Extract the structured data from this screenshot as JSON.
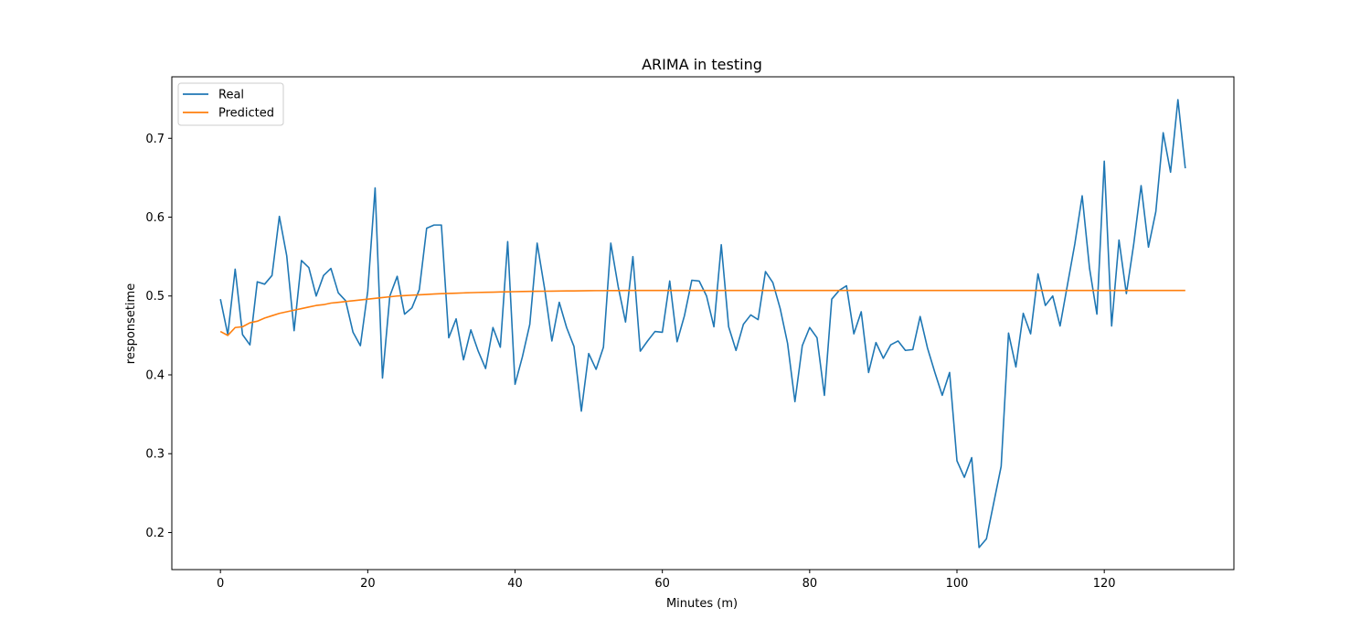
{
  "chart_data": {
    "type": "line",
    "title": "ARIMA in testing",
    "xlabel": "Minutes (m)",
    "ylabel": "responsetime",
    "xlim": [
      -6.6,
      137.6
    ],
    "ylim": [
      0.153,
      0.778
    ],
    "xticks": [
      0,
      20,
      40,
      60,
      80,
      100,
      120
    ],
    "yticks": [
      0.2,
      0.3,
      0.4,
      0.5,
      0.6,
      0.7
    ],
    "legend_position": "top-left",
    "grid": false,
    "series": [
      {
        "name": "Real",
        "color": "#1f77b4",
        "y": [
          0.496,
          0.451,
          0.534,
          0.451,
          0.438,
          0.518,
          0.515,
          0.526,
          0.601,
          0.551,
          0.456,
          0.545,
          0.536,
          0.5,
          0.526,
          0.535,
          0.504,
          0.494,
          0.454,
          0.437,
          0.506,
          0.637,
          0.396,
          0.5,
          0.525,
          0.477,
          0.485,
          0.508,
          0.586,
          0.59,
          0.59,
          0.447,
          0.471,
          0.419,
          0.457,
          0.43,
          0.408,
          0.46,
          0.435,
          0.569,
          0.388,
          0.423,
          0.464,
          0.567,
          0.51,
          0.443,
          0.492,
          0.46,
          0.436,
          0.354,
          0.427,
          0.407,
          0.435,
          0.567,
          0.512,
          0.467,
          0.55,
          0.43,
          0.443,
          0.455,
          0.454,
          0.519,
          0.442,
          0.475,
          0.52,
          0.519,
          0.5,
          0.461,
          0.565,
          0.461,
          0.431,
          0.464,
          0.476,
          0.47,
          0.531,
          0.517,
          0.484,
          0.44,
          0.366,
          0.437,
          0.46,
          0.447,
          0.374,
          0.496,
          0.507,
          0.513,
          0.452,
          0.48,
          0.403,
          0.441,
          0.421,
          0.438,
          0.443,
          0.431,
          0.432,
          0.474,
          0.434,
          0.403,
          0.374,
          0.403,
          0.291,
          0.27,
          0.295,
          0.181,
          0.192,
          0.238,
          0.284,
          0.453,
          0.41,
          0.478,
          0.452,
          0.528,
          0.488,
          0.5,
          0.462,
          0.514,
          0.566,
          0.627,
          0.535,
          0.477,
          0.671,
          0.462,
          0.571,
          0.503,
          0.566,
          0.64,
          0.562,
          0.607,
          0.707,
          0.657,
          0.749,
          0.662
        ]
      },
      {
        "name": "Predicted",
        "color": "#ff7f0e",
        "y": [
          0.455,
          0.45,
          0.46,
          0.461,
          0.466,
          0.468,
          0.472,
          0.475,
          0.478,
          0.48,
          0.482,
          0.484,
          0.486,
          0.488,
          0.489,
          0.491,
          0.492,
          0.493,
          0.494,
          0.495,
          0.496,
          0.497,
          0.498,
          0.499,
          0.5,
          0.5005,
          0.501,
          0.5015,
          0.502,
          0.5025,
          0.503,
          0.5033,
          0.5036,
          0.5039,
          0.5042,
          0.5045,
          0.5047,
          0.5049,
          0.5051,
          0.5053,
          0.5055,
          0.5057,
          0.5059,
          0.506,
          0.5061,
          0.5062,
          0.5063,
          0.5064,
          0.5065,
          0.5066,
          0.5067,
          0.5068,
          0.5068,
          0.5069,
          0.5069,
          0.507,
          0.507,
          0.507,
          0.507,
          0.507,
          0.507,
          0.507,
          0.507,
          0.507,
          0.507,
          0.507,
          0.507,
          0.507,
          0.507,
          0.507,
          0.507,
          0.507,
          0.507,
          0.507,
          0.507,
          0.507,
          0.507,
          0.507,
          0.507,
          0.507,
          0.507,
          0.507,
          0.507,
          0.507,
          0.507,
          0.507,
          0.507,
          0.507,
          0.507,
          0.507,
          0.507,
          0.507,
          0.507,
          0.507,
          0.507,
          0.507,
          0.507,
          0.507,
          0.507,
          0.507,
          0.507,
          0.507,
          0.507,
          0.507,
          0.507,
          0.507,
          0.507,
          0.507,
          0.507,
          0.507,
          0.507,
          0.507,
          0.507,
          0.507,
          0.507,
          0.507,
          0.507,
          0.507,
          0.507,
          0.507,
          0.507,
          0.507,
          0.507,
          0.507,
          0.507,
          0.507,
          0.507,
          0.507,
          0.507,
          0.507,
          0.507,
          0.507
        ]
      }
    ]
  }
}
